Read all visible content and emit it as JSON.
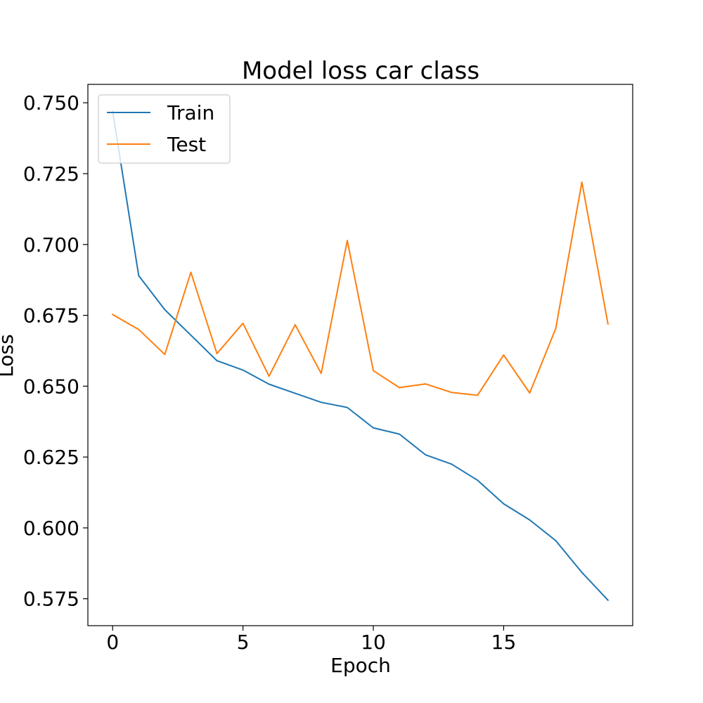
{
  "chart_data": {
    "type": "line",
    "title": "Model loss car class",
    "xlabel": "Epoch",
    "ylabel": "Loss",
    "xlim": [
      -0.95,
      19.95
    ],
    "ylim": [
      0.5655,
      0.7565
    ],
    "xticks": [
      0,
      5,
      10,
      15
    ],
    "xtick_labels": [
      "0",
      "5",
      "10",
      "15"
    ],
    "yticks": [
      0.575,
      0.6,
      0.625,
      0.65,
      0.675,
      0.7,
      0.725,
      0.75
    ],
    "ytick_labels": [
      "0.575",
      "0.600",
      "0.625",
      "0.650",
      "0.675",
      "0.700",
      "0.725",
      "0.750"
    ],
    "grid": false,
    "legend_position": "upper-left",
    "x": [
      0,
      1,
      2,
      3,
      4,
      5,
      6,
      7,
      8,
      9,
      10,
      11,
      12,
      13,
      14,
      15,
      16,
      17,
      18,
      19
    ],
    "series": [
      {
        "name": "Train",
        "color": "#1f77b4",
        "values": [
          0.747,
          0.689,
          0.677,
          0.668,
          0.659,
          0.6557,
          0.6507,
          0.6475,
          0.6443,
          0.6425,
          0.6353,
          0.6331,
          0.6258,
          0.6225,
          0.6168,
          0.6085,
          0.6028,
          0.5955,
          0.5843,
          0.5745
        ]
      },
      {
        "name": "Test",
        "color": "#ff7f0e",
        "values": [
          0.6753,
          0.67,
          0.6612,
          0.6902,
          0.6615,
          0.6722,
          0.6535,
          0.6717,
          0.6545,
          0.7014,
          0.6555,
          0.6495,
          0.6508,
          0.6478,
          0.6468,
          0.661,
          0.6476,
          0.6704,
          0.722,
          0.672
        ]
      }
    ]
  }
}
